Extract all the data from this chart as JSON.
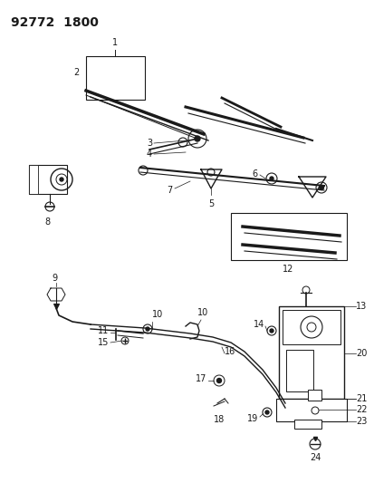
{
  "title": "92772  1800",
  "bg_color": "#ffffff",
  "line_color": "#1a1a1a",
  "fig_width": 4.14,
  "fig_height": 5.33,
  "dpi": 100
}
